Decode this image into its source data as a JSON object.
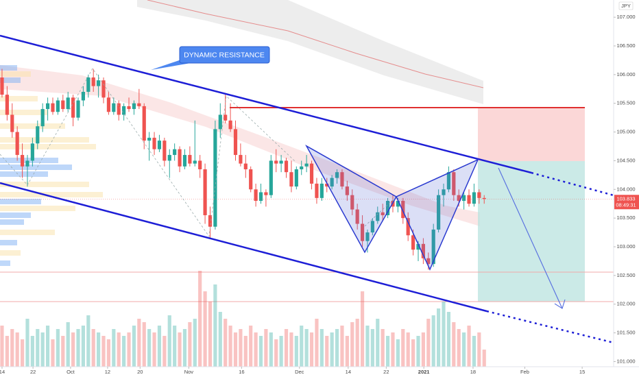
{
  "chart_data": {
    "type": "candlestick",
    "currency_label": "JPY",
    "annotation": "DYNAMIC RESISTANCE",
    "last_price": 103.833,
    "countdown": "08:49:31",
    "up_color": "#26a69a",
    "down_color": "#ef5350",
    "xlim": [
      -0.4,
      120.5
    ],
    "ylim": [
      100.91,
      107.3
    ],
    "yticks": [
      {
        "value": 101,
        "label": "101.000"
      },
      {
        "value": 101.5,
        "label": "101.500"
      },
      {
        "value": 102,
        "label": "102.000"
      },
      {
        "value": 102.5,
        "label": "102.500"
      },
      {
        "value": 103,
        "label": "103.000"
      },
      {
        "value": 103.5,
        "label": "103.500"
      },
      {
        "value": 104,
        "label": "104.000"
      },
      {
        "value": 104.5,
        "label": "104.500"
      },
      {
        "value": 105,
        "label": "105.000"
      },
      {
        "value": 105.5,
        "label": "105.500"
      },
      {
        "value": 106,
        "label": "106.000"
      },
      {
        "value": 106.5,
        "label": "106.500"
      },
      {
        "value": 107,
        "label": "107.000"
      }
    ],
    "xticks": [
      {
        "value": 0,
        "label": "14"
      },
      {
        "value": 6.1,
        "label": "22"
      },
      {
        "value": 13.5,
        "label": "Oct"
      },
      {
        "value": 20.8,
        "label": "12"
      },
      {
        "value": 27.2,
        "label": "20"
      },
      {
        "value": 36.8,
        "label": "Nov"
      },
      {
        "value": 47.2,
        "label": "16"
      },
      {
        "value": 58.6,
        "label": "Dec"
      },
      {
        "value": 68.2,
        "label": "14"
      },
      {
        "value": 75.7,
        "label": "22"
      },
      {
        "value": 83.1,
        "label": "2021"
      },
      {
        "value": 92.8,
        "label": "18"
      },
      {
        "value": 103,
        "label": "Feb"
      },
      {
        "value": 114.3,
        "label": "15"
      }
    ],
    "candles": [
      [
        105.95,
        106.1,
        105.6,
        105.65
      ],
      [
        105.65,
        105.8,
        105.2,
        105.3
      ],
      [
        105.3,
        105.5,
        104.9,
        105.0
      ],
      [
        105.0,
        105.1,
        104.5,
        104.6
      ],
      [
        104.6,
        104.8,
        104.2,
        104.4
      ],
      [
        104.4,
        104.6,
        104.05,
        104.5
      ],
      [
        104.5,
        104.9,
        104.4,
        104.8
      ],
      [
        104.8,
        105.2,
        104.7,
        105.1
      ],
      [
        105.1,
        105.5,
        105.0,
        105.4
      ],
      [
        105.4,
        105.6,
        105.2,
        105.5
      ],
      [
        105.5,
        105.6,
        105.3,
        105.35
      ],
      [
        105.35,
        105.6,
        105.3,
        105.55
      ],
      [
        105.55,
        105.65,
        105.35,
        105.4
      ],
      [
        105.4,
        105.7,
        105.35,
        105.6
      ],
      [
        105.6,
        105.65,
        105.1,
        105.25
      ],
      [
        105.25,
        105.6,
        105.2,
        105.55
      ],
      [
        105.55,
        105.8,
        105.45,
        105.7
      ],
      [
        105.7,
        106.0,
        105.6,
        105.95
      ],
      [
        105.95,
        106.1,
        105.7,
        105.8
      ],
      [
        105.8,
        106.0,
        105.6,
        105.9
      ],
      [
        105.9,
        105.95,
        105.5,
        105.6
      ],
      [
        105.6,
        105.7,
        105.3,
        105.35
      ],
      [
        105.35,
        105.6,
        105.3,
        105.5
      ],
      [
        105.5,
        105.55,
        105.2,
        105.3
      ],
      [
        105.3,
        105.5,
        105.2,
        105.45
      ],
      [
        105.45,
        105.6,
        105.35,
        105.4
      ],
      [
        105.4,
        105.55,
        105.3,
        105.5
      ],
      [
        105.5,
        105.75,
        105.4,
        105.45
      ],
      [
        105.45,
        105.5,
        104.7,
        104.85
      ],
      [
        104.85,
        105.0,
        104.5,
        104.9
      ],
      [
        104.9,
        105.0,
        104.6,
        104.7
      ],
      [
        104.7,
        104.95,
        104.65,
        104.85
      ],
      [
        104.85,
        104.9,
        104.4,
        104.5
      ],
      [
        104.5,
        104.7,
        104.2,
        104.6
      ],
      [
        104.6,
        104.8,
        104.5,
        104.7
      ],
      [
        104.7,
        104.75,
        104.3,
        104.4
      ],
      [
        104.4,
        104.7,
        104.35,
        104.6
      ],
      [
        104.6,
        104.75,
        104.4,
        104.45
      ],
      [
        104.45,
        105.2,
        104.4,
        104.5
      ],
      [
        104.5,
        104.6,
        104.2,
        104.35
      ],
      [
        104.35,
        104.45,
        103.4,
        103.55
      ],
      [
        103.55,
        103.7,
        103.15,
        103.35
      ],
      [
        103.35,
        105.2,
        103.3,
        105.05
      ],
      [
        105.05,
        105.5,
        104.9,
        105.3
      ],
      [
        105.3,
        105.65,
        105.15,
        105.2
      ],
      [
        105.2,
        105.5,
        105.0,
        105.05
      ],
      [
        105.05,
        105.2,
        104.5,
        104.6
      ],
      [
        104.6,
        104.8,
        104.4,
        104.45
      ],
      [
        104.45,
        104.6,
        104.2,
        104.35
      ],
      [
        104.35,
        104.4,
        103.95,
        104.0
      ],
      [
        104.0,
        104.1,
        103.7,
        103.8
      ],
      [
        103.8,
        104.1,
        103.75,
        103.95
      ],
      [
        103.95,
        104.0,
        103.7,
        103.9
      ],
      [
        103.9,
        104.6,
        103.85,
        104.5
      ],
      [
        104.5,
        104.7,
        104.3,
        104.45
      ],
      [
        104.45,
        104.6,
        104.3,
        104.5
      ],
      [
        104.5,
        104.55,
        104.2,
        104.3
      ],
      [
        104.3,
        104.5,
        103.95,
        104.05
      ],
      [
        104.05,
        104.4,
        104.0,
        104.35
      ],
      [
        104.35,
        104.5,
        104.25,
        104.4
      ],
      [
        104.4,
        104.6,
        104.3,
        104.45
      ],
      [
        104.45,
        104.5,
        104.0,
        104.1
      ],
      [
        104.1,
        104.2,
        103.75,
        103.85
      ],
      [
        103.85,
        104.2,
        103.8,
        104.1
      ],
      [
        104.1,
        104.2,
        103.95,
        104.05
      ],
      [
        104.05,
        104.25,
        104.0,
        104.2
      ],
      [
        104.2,
        104.35,
        104.1,
        104.3
      ],
      [
        104.3,
        104.35,
        104.0,
        104.05
      ],
      [
        104.05,
        104.15,
        103.8,
        103.9
      ],
      [
        103.9,
        104.0,
        103.55,
        103.65
      ],
      [
        103.65,
        103.75,
        103.3,
        103.4
      ],
      [
        103.4,
        103.55,
        103.0,
        103.1
      ],
      [
        103.1,
        103.3,
        102.9,
        103.25
      ],
      [
        103.25,
        103.5,
        103.2,
        103.45
      ],
      [
        103.45,
        103.7,
        103.4,
        103.6
      ],
      [
        103.6,
        103.75,
        103.45,
        103.55
      ],
      [
        103.55,
        103.85,
        103.5,
        103.8
      ],
      [
        103.8,
        103.9,
        103.6,
        103.7
      ],
      [
        103.7,
        103.85,
        103.6,
        103.8
      ],
      [
        103.8,
        103.85,
        103.4,
        103.5
      ],
      [
        103.5,
        103.6,
        103.1,
        103.2
      ],
      [
        103.2,
        103.3,
        102.85,
        102.95
      ],
      [
        102.95,
        103.1,
        102.75,
        103.05
      ],
      [
        103.05,
        103.15,
        102.7,
        102.8
      ],
      [
        102.8,
        102.9,
        102.6,
        102.7
      ],
      [
        102.7,
        103.4,
        102.65,
        103.3
      ],
      [
        103.3,
        104.0,
        103.25,
        103.9
      ],
      [
        103.9,
        104.1,
        103.7,
        104.0
      ],
      [
        104.0,
        104.4,
        103.95,
        104.3
      ],
      [
        104.3,
        104.35,
        103.8,
        103.9
      ],
      [
        103.9,
        104.0,
        103.7,
        103.8
      ],
      [
        103.8,
        103.95,
        103.65,
        103.9
      ],
      [
        103.9,
        104.0,
        103.7,
        103.75
      ],
      [
        103.75,
        104.1,
        103.7,
        103.95
      ],
      [
        103.95,
        104.0,
        103.75,
        103.85
      ],
      [
        103.85,
        103.9,
        103.75,
        103.833
      ]
    ],
    "volume": [
      60,
      45,
      55,
      50,
      40,
      70,
      45,
      55,
      50,
      60,
      40,
      55,
      45,
      65,
      50,
      55,
      60,
      75,
      55,
      50,
      45,
      40,
      55,
      50,
      45,
      50,
      60,
      70,
      65,
      55,
      50,
      60,
      45,
      75,
      60,
      50,
      55,
      65,
      70,
      140,
      110,
      95,
      120,
      80,
      70,
      60,
      50,
      55,
      45,
      60,
      50,
      45,
      55,
      50,
      40,
      45,
      55,
      50,
      45,
      60,
      55,
      50,
      70,
      55,
      45,
      50,
      55,
      60,
      45,
      65,
      70,
      110,
      60,
      55,
      70,
      55,
      45,
      50,
      40,
      55,
      50,
      40,
      45,
      50,
      70,
      75,
      85,
      95,
      80,
      65,
      55,
      50,
      60,
      45,
      50,
      25
    ]
  }
}
